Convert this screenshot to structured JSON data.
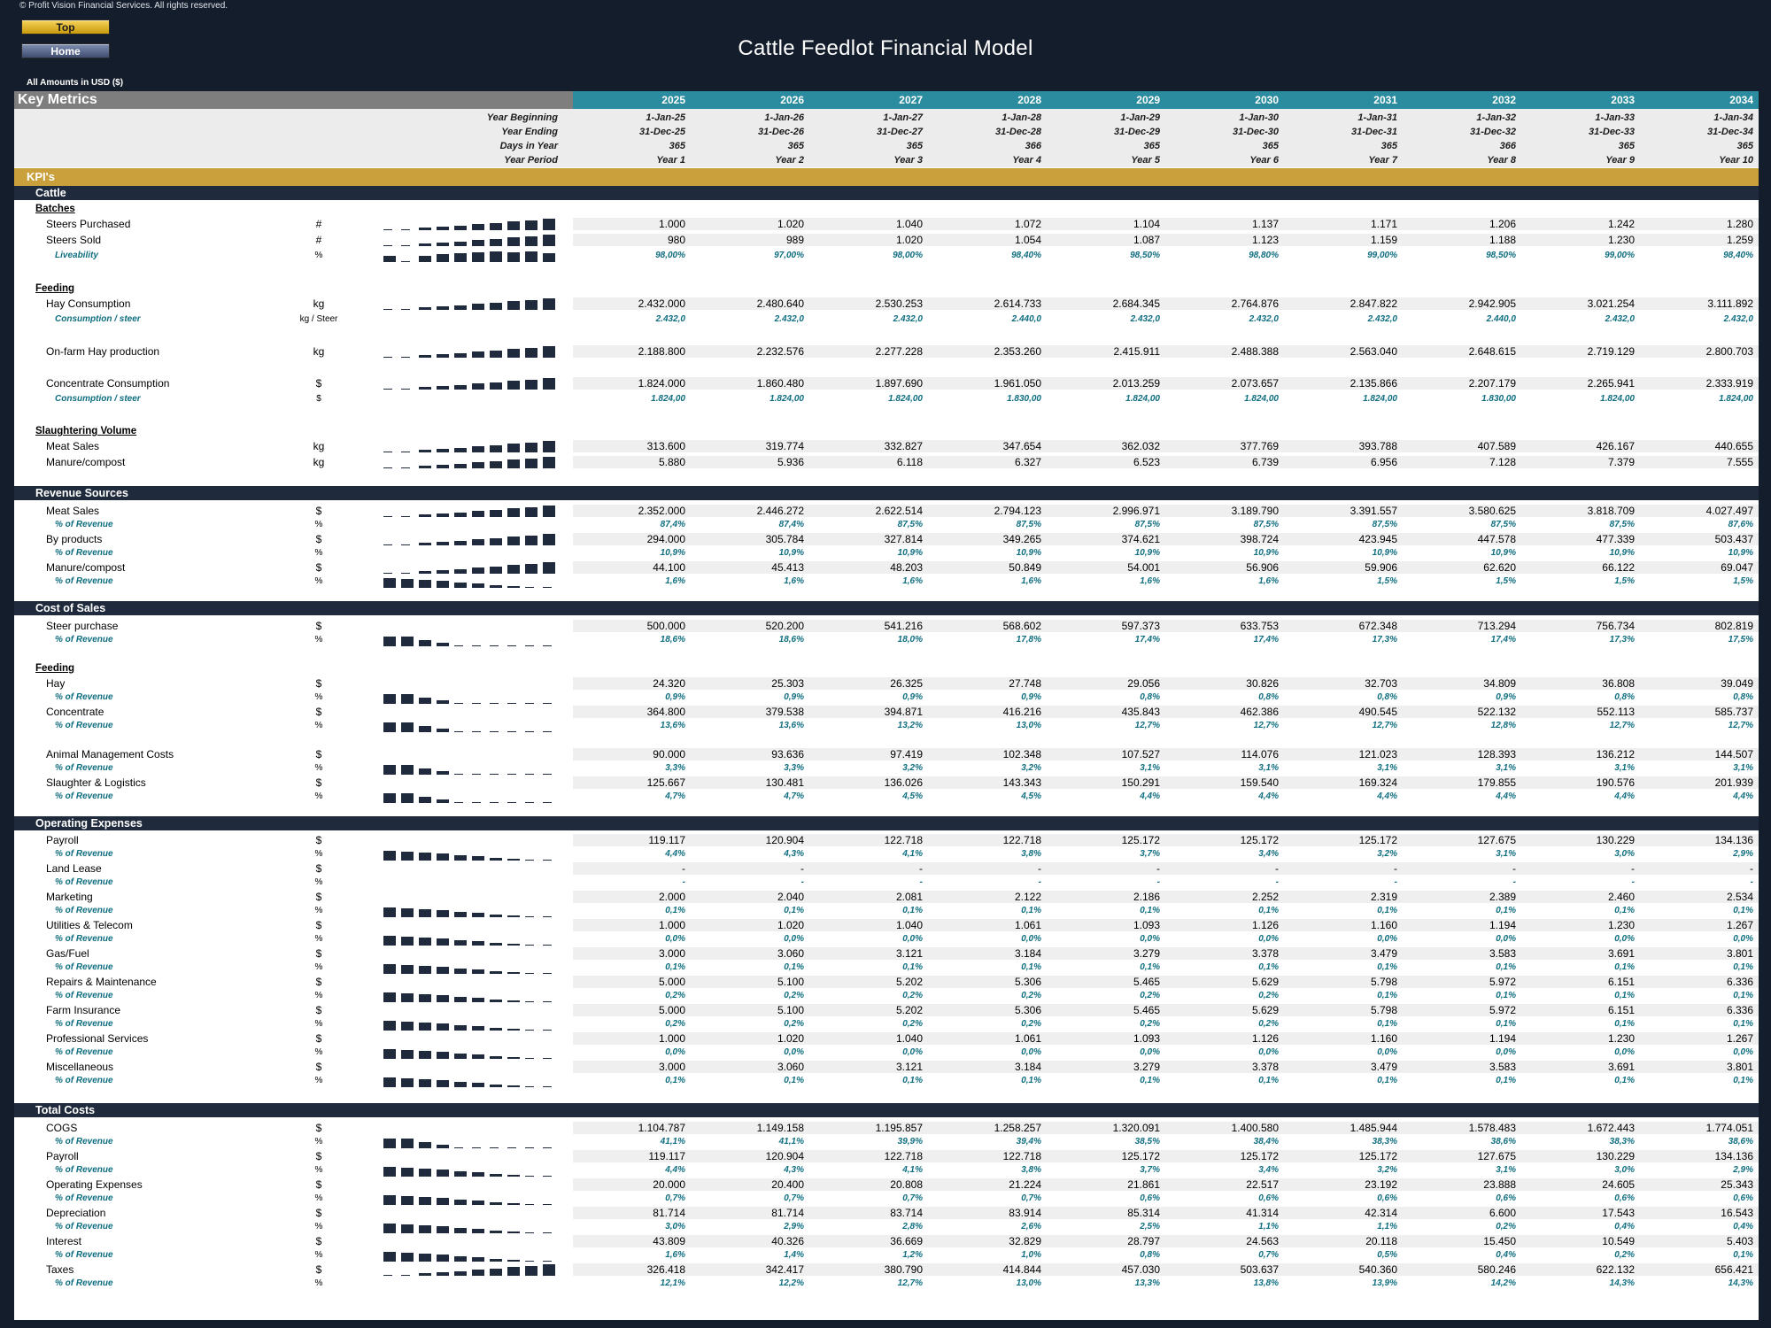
{
  "copyright": "© Profit Vision Financial Services. All rights reserved.",
  "nav": {
    "top": "Top",
    "home": "Home"
  },
  "title": "Cattle Feedlot Financial Model",
  "currency_note": "All Amounts in  USD ($)",
  "header": {
    "key_metrics": "Key Metrics",
    "years": [
      "2025",
      "2026",
      "2027",
      "2028",
      "2029",
      "2030",
      "2031",
      "2032",
      "2033",
      "2034"
    ],
    "meta": [
      {
        "label": "Year Beginning",
        "values": [
          "1-Jan-25",
          "1-Jan-26",
          "1-Jan-27",
          "1-Jan-28",
          "1-Jan-29",
          "1-Jan-30",
          "1-Jan-31",
          "1-Jan-32",
          "1-Jan-33",
          "1-Jan-34"
        ]
      },
      {
        "label": "Year Ending",
        "values": [
          "31-Dec-25",
          "31-Dec-26",
          "31-Dec-27",
          "31-Dec-28",
          "31-Dec-29",
          "31-Dec-30",
          "31-Dec-31",
          "31-Dec-32",
          "31-Dec-33",
          "31-Dec-34"
        ]
      },
      {
        "label": "Days in Year",
        "values": [
          "365",
          "365",
          "365",
          "366",
          "365",
          "365",
          "365",
          "366",
          "365",
          "365"
        ]
      },
      {
        "label": "Year Period",
        "values": [
          "Year 1",
          "Year 2",
          "Year 3",
          "Year 4",
          "Year 5",
          "Year 6",
          "Year 7",
          "Year 8",
          "Year 9",
          "Year 10"
        ]
      }
    ]
  },
  "colors": {
    "teal": "#2b8ca0",
    "gray": "#7e7e7e",
    "gold": "#c9a03c",
    "navy": "#1f2a3c"
  },
  "rows": [
    {
      "t": "gold",
      "y": 89,
      "label": "KPI's"
    },
    {
      "t": "sec",
      "y": 109,
      "label": "Cattle"
    },
    {
      "t": "sub",
      "y": 125,
      "label": "Batches"
    },
    {
      "t": "data",
      "y": 142,
      "label": "Steers Purchased",
      "unit": "#",
      "spark": "up",
      "values": [
        "1.000",
        "1.020",
        "1.040",
        "1.072",
        "1.104",
        "1.137",
        "1.171",
        "1.206",
        "1.242",
        "1.280"
      ]
    },
    {
      "t": "data",
      "y": 160,
      "label": "Steers Sold",
      "unit": "#",
      "spark": "up",
      "values": [
        "980",
        "989",
        "1.020",
        "1.054",
        "1.087",
        "1.123",
        "1.159",
        "1.188",
        "1.230",
        "1.259"
      ]
    },
    {
      "t": "pct",
      "y": 178,
      "label": "Liveability",
      "unit": "%",
      "spark": "full",
      "values": [
        "98,00%",
        "97,00%",
        "98,00%",
        "98,40%",
        "98,50%",
        "98,80%",
        "99,00%",
        "98,50%",
        "99,00%",
        "98,40%"
      ]
    },
    {
      "t": "sub",
      "y": 215,
      "label": "Feeding"
    },
    {
      "t": "data",
      "y": 232,
      "label": "Hay Consumption",
      "unit": "kg",
      "spark": "up",
      "values": [
        "2.432.000",
        "2.480.640",
        "2.530.253",
        "2.614.733",
        "2.684.345",
        "2.764.876",
        "2.847.822",
        "2.942.905",
        "3.021.254",
        "3.111.892"
      ]
    },
    {
      "t": "pct",
      "y": 250,
      "label": "Consumption / steer",
      "unit": "kg / Steer",
      "values": [
        "2.432,0",
        "2.432,0",
        "2.432,0",
        "2.440,0",
        "2.432,0",
        "2.432,0",
        "2.432,0",
        "2.440,0",
        "2.432,0",
        "2.432,0"
      ]
    },
    {
      "t": "data",
      "y": 286,
      "label": "On-farm Hay production",
      "unit": "kg",
      "spark": "up",
      "values": [
        "2.188.800",
        "2.232.576",
        "2.277.228",
        "2.353.260",
        "2.415.911",
        "2.488.388",
        "2.563.040",
        "2.648.615",
        "2.719.129",
        "2.800.703"
      ]
    },
    {
      "t": "data",
      "y": 322,
      "label": "Concentrate Consumption",
      "unit": "$",
      "spark": "up",
      "values": [
        "1.824.000",
        "1.860.480",
        "1.897.690",
        "1.961.050",
        "2.013.259",
        "2.073.657",
        "2.135.866",
        "2.207.179",
        "2.265.941",
        "2.333.919"
      ]
    },
    {
      "t": "pct",
      "y": 340,
      "label": "Consumption / steer",
      "unit": "$",
      "values": [
        "1.824,00",
        "1.824,00",
        "1.824,00",
        "1.830,00",
        "1.824,00",
        "1.824,00",
        "1.824,00",
        "1.830,00",
        "1.824,00",
        "1.824,00"
      ]
    },
    {
      "t": "sub",
      "y": 376,
      "label": "Slaughtering Volume"
    },
    {
      "t": "data",
      "y": 393,
      "label": "Meat Sales",
      "unit": "kg",
      "spark": "up",
      "values": [
        "313.600",
        "319.774",
        "332.827",
        "347.654",
        "362.032",
        "377.769",
        "393.788",
        "407.589",
        "426.167",
        "440.655"
      ]
    },
    {
      "t": "data",
      "y": 411,
      "label": "Manure/compost",
      "unit": "kg",
      "spark": "up",
      "values": [
        "5.880",
        "5.936",
        "6.118",
        "6.327",
        "6.523",
        "6.739",
        "6.956",
        "7.128",
        "7.379",
        "7.555"
      ]
    },
    {
      "t": "sec",
      "y": 448,
      "label": "Revenue Sources"
    },
    {
      "t": "data",
      "y": 466,
      "label": "Meat Sales",
      "unit": "$",
      "spark": "up",
      "values": [
        "2.352.000",
        "2.446.272",
        "2.622.514",
        "2.794.123",
        "2.996.971",
        "3.189.790",
        "3.391.557",
        "3.580.625",
        "3.818.709",
        "4.027.497"
      ]
    },
    {
      "t": "pct",
      "y": 482,
      "label": "% of Revenue",
      "unit": "%",
      "values": [
        "87,4%",
        "87,4%",
        "87,5%",
        "87,5%",
        "87,5%",
        "87,5%",
        "87,5%",
        "87,5%",
        "87,5%",
        "87,6%"
      ]
    },
    {
      "t": "data",
      "y": 498,
      "label": "By products",
      "unit": "$",
      "spark": "up",
      "values": [
        "294.000",
        "305.784",
        "327.814",
        "349.265",
        "374.621",
        "398.724",
        "423.945",
        "447.578",
        "477.339",
        "503.437"
      ]
    },
    {
      "t": "pct",
      "y": 514,
      "label": "% of Revenue",
      "unit": "%",
      "values": [
        "10,9%",
        "10,9%",
        "10,9%",
        "10,9%",
        "10,9%",
        "10,9%",
        "10,9%",
        "10,9%",
        "10,9%",
        "10,9%"
      ]
    },
    {
      "t": "data",
      "y": 530,
      "label": "Manure/compost",
      "unit": "$",
      "spark": "up",
      "values": [
        "44.100",
        "45.413",
        "48.203",
        "50.849",
        "54.001",
        "56.906",
        "59.906",
        "62.620",
        "66.122",
        "69.047"
      ]
    },
    {
      "t": "pct",
      "y": 546,
      "label": "% of Revenue",
      "unit": "%",
      "spark": "down",
      "values": [
        "1,6%",
        "1,6%",
        "1,6%",
        "1,6%",
        "1,6%",
        "1,6%",
        "1,5%",
        "1,5%",
        "1,5%",
        "1,5%"
      ]
    },
    {
      "t": "sec",
      "y": 578,
      "label": "Cost of Sales"
    },
    {
      "t": "data",
      "y": 596,
      "label": "Steer purchase",
      "unit": "$",
      "values": [
        "500.000",
        "520.200",
        "541.216",
        "568.602",
        "597.373",
        "633.753",
        "672.348",
        "713.294",
        "756.734",
        "802.819"
      ]
    },
    {
      "t": "pct",
      "y": 612,
      "label": "% of Revenue",
      "unit": "%",
      "spark": "down2",
      "values": [
        "18,6%",
        "18,6%",
        "18,0%",
        "17,8%",
        "17,4%",
        "17,4%",
        "17,3%",
        "17,4%",
        "17,3%",
        "17,5%"
      ]
    },
    {
      "t": "sub",
      "y": 644,
      "label": "Feeding"
    },
    {
      "t": "data",
      "y": 661,
      "label": "Hay",
      "unit": "$",
      "values": [
        "24.320",
        "25.303",
        "26.325",
        "27.748",
        "29.056",
        "30.826",
        "32.703",
        "34.809",
        "36.808",
        "39.049"
      ]
    },
    {
      "t": "pct",
      "y": 677,
      "label": "% of Revenue",
      "unit": "%",
      "spark": "down2",
      "values": [
        "0,9%",
        "0,9%",
        "0,9%",
        "0,9%",
        "0,8%",
        "0,8%",
        "0,8%",
        "0,9%",
        "0,8%",
        "0,8%"
      ]
    },
    {
      "t": "data",
      "y": 693,
      "label": "Concentrate",
      "unit": "$",
      "values": [
        "364.800",
        "379.538",
        "394.871",
        "416.216",
        "435.843",
        "462.386",
        "490.545",
        "522.132",
        "552.113",
        "585.737"
      ]
    },
    {
      "t": "pct",
      "y": 709,
      "label": "% of Revenue",
      "unit": "%",
      "spark": "down2",
      "values": [
        "13,6%",
        "13,6%",
        "13,2%",
        "13,0%",
        "12,7%",
        "12,7%",
        "12,7%",
        "12,8%",
        "12,7%",
        "12,7%"
      ]
    },
    {
      "t": "data",
      "y": 741,
      "label": "Animal Management Costs",
      "unit": "$",
      "values": [
        "90.000",
        "93.636",
        "97.419",
        "102.348",
        "107.527",
        "114.076",
        "121.023",
        "128.393",
        "136.212",
        "144.507"
      ]
    },
    {
      "t": "pct",
      "y": 757,
      "label": "% of Revenue",
      "unit": "%",
      "spark": "down2",
      "values": [
        "3,3%",
        "3,3%",
        "3,2%",
        "3,2%",
        "3,1%",
        "3,1%",
        "3,1%",
        "3,1%",
        "3,1%",
        "3,1%"
      ]
    },
    {
      "t": "data",
      "y": 773,
      "label": "Slaughter & Logistics",
      "unit": "$",
      "values": [
        "125.667",
        "130.481",
        "136.026",
        "143.343",
        "150.291",
        "159.540",
        "169.324",
        "179.855",
        "190.576",
        "201.939"
      ]
    },
    {
      "t": "pct",
      "y": 789,
      "label": "% of Revenue",
      "unit": "%",
      "spark": "down2",
      "values": [
        "4,7%",
        "4,7%",
        "4,5%",
        "4,5%",
        "4,4%",
        "4,4%",
        "4,4%",
        "4,4%",
        "4,4%",
        "4,4%"
      ]
    },
    {
      "t": "sec",
      "y": 821,
      "label": "Operating Expenses"
    },
    {
      "t": "data",
      "y": 838,
      "label": "Payroll",
      "unit": "$",
      "values": [
        "119.117",
        "120.904",
        "122.718",
        "122.718",
        "125.172",
        "125.172",
        "125.172",
        "127.675",
        "130.229",
        "134.136"
      ]
    },
    {
      "t": "pct",
      "y": 854,
      "label": "% of Revenue",
      "unit": "%",
      "spark": "down",
      "values": [
        "4,4%",
        "4,3%",
        "4,1%",
        "3,8%",
        "3,7%",
        "3,4%",
        "3,2%",
        "3,1%",
        "3,0%",
        "2,9%"
      ]
    },
    {
      "t": "data",
      "y": 870,
      "label": "Land Lease",
      "unit": "$",
      "values": [
        "-",
        "-",
        "-",
        "-",
        "-",
        "-",
        "-",
        "-",
        "-",
        "-"
      ]
    },
    {
      "t": "pct",
      "y": 886,
      "label": "% of Revenue",
      "unit": "%",
      "values": [
        "-",
        "-",
        "-",
        "-",
        "-",
        "-",
        "-",
        "-",
        "-",
        "-"
      ]
    },
    {
      "t": "data",
      "y": 902,
      "label": "Marketing",
      "unit": "$",
      "values": [
        "2.000",
        "2.040",
        "2.081",
        "2.122",
        "2.186",
        "2.252",
        "2.319",
        "2.389",
        "2.460",
        "2.534"
      ]
    },
    {
      "t": "pct",
      "y": 918,
      "label": "% of Revenue",
      "unit": "%",
      "spark": "down",
      "values": [
        "0,1%",
        "0,1%",
        "0,1%",
        "0,1%",
        "0,1%",
        "0,1%",
        "0,1%",
        "0,1%",
        "0,1%",
        "0,1%"
      ]
    },
    {
      "t": "data",
      "y": 934,
      "label": "Utilities & Telecom",
      "unit": "$",
      "values": [
        "1.000",
        "1.020",
        "1.040",
        "1.061",
        "1.093",
        "1.126",
        "1.160",
        "1.194",
        "1.230",
        "1.267"
      ]
    },
    {
      "t": "pct",
      "y": 950,
      "label": "% of Revenue",
      "unit": "%",
      "spark": "down",
      "values": [
        "0,0%",
        "0,0%",
        "0,0%",
        "0,0%",
        "0,0%",
        "0,0%",
        "0,0%",
        "0,0%",
        "0,0%",
        "0,0%"
      ]
    },
    {
      "t": "data",
      "y": 966,
      "label": "Gas/Fuel",
      "unit": "$",
      "values": [
        "3.000",
        "3.060",
        "3.121",
        "3.184",
        "3.279",
        "3.378",
        "3.479",
        "3.583",
        "3.691",
        "3.801"
      ]
    },
    {
      "t": "pct",
      "y": 982,
      "label": "% of Revenue",
      "unit": "%",
      "spark": "down",
      "values": [
        "0,1%",
        "0,1%",
        "0,1%",
        "0,1%",
        "0,1%",
        "0,1%",
        "0,1%",
        "0,1%",
        "0,1%",
        "0,1%"
      ]
    },
    {
      "t": "data",
      "y": 998,
      "label": "Repairs & Maintenance",
      "unit": "$",
      "values": [
        "5.000",
        "5.100",
        "5.202",
        "5.306",
        "5.465",
        "5.629",
        "5.798",
        "5.972",
        "6.151",
        "6.336"
      ]
    },
    {
      "t": "pct",
      "y": 1014,
      "label": "% of Revenue",
      "unit": "%",
      "spark": "down",
      "values": [
        "0,2%",
        "0,2%",
        "0,2%",
        "0,2%",
        "0,2%",
        "0,2%",
        "0,1%",
        "0,1%",
        "0,1%",
        "0,1%"
      ]
    },
    {
      "t": "data",
      "y": 1030,
      "label": "Farm Insurance",
      "unit": "$",
      "values": [
        "5.000",
        "5.100",
        "5.202",
        "5.306",
        "5.465",
        "5.629",
        "5.798",
        "5.972",
        "6.151",
        "6.336"
      ]
    },
    {
      "t": "pct",
      "y": 1046,
      "label": "% of Revenue",
      "unit": "%",
      "spark": "down",
      "values": [
        "0,2%",
        "0,2%",
        "0,2%",
        "0,2%",
        "0,2%",
        "0,2%",
        "0,1%",
        "0,1%",
        "0,1%",
        "0,1%"
      ]
    },
    {
      "t": "data",
      "y": 1062,
      "label": "Professional Services",
      "unit": "$",
      "values": [
        "1.000",
        "1.020",
        "1.040",
        "1.061",
        "1.093",
        "1.126",
        "1.160",
        "1.194",
        "1.230",
        "1.267"
      ]
    },
    {
      "t": "pct",
      "y": 1078,
      "label": "% of Revenue",
      "unit": "%",
      "spark": "down",
      "values": [
        "0,0%",
        "0,0%",
        "0,0%",
        "0,0%",
        "0,0%",
        "0,0%",
        "0,0%",
        "0,0%",
        "0,0%",
        "0,0%"
      ]
    },
    {
      "t": "data",
      "y": 1094,
      "label": "Miscellaneous",
      "unit": "$",
      "values": [
        "3.000",
        "3.060",
        "3.121",
        "3.184",
        "3.279",
        "3.378",
        "3.479",
        "3.583",
        "3.691",
        "3.801"
      ]
    },
    {
      "t": "pct",
      "y": 1110,
      "label": "% of Revenue",
      "unit": "%",
      "spark": "down",
      "values": [
        "0,1%",
        "0,1%",
        "0,1%",
        "0,1%",
        "0,1%",
        "0,1%",
        "0,1%",
        "0,1%",
        "0,1%",
        "0,1%"
      ]
    },
    {
      "t": "sec",
      "y": 1145,
      "label": "Total Costs"
    },
    {
      "t": "data",
      "y": 1163,
      "label": "COGS",
      "unit": "$",
      "values": [
        "1.104.787",
        "1.149.158",
        "1.195.857",
        "1.258.257",
        "1.320.091",
        "1.400.580",
        "1.485.944",
        "1.578.483",
        "1.672.443",
        "1.774.051"
      ]
    },
    {
      "t": "pct",
      "y": 1179,
      "label": "% of Revenue",
      "unit": "%",
      "spark": "down2",
      "values": [
        "41,1%",
        "41,1%",
        "39,9%",
        "39,4%",
        "38,5%",
        "38,4%",
        "38,3%",
        "38,6%",
        "38,3%",
        "38,6%"
      ]
    },
    {
      "t": "data",
      "y": 1195,
      "label": "Payroll",
      "unit": "$",
      "values": [
        "119.117",
        "120.904",
        "122.718",
        "122.718",
        "125.172",
        "125.172",
        "125.172",
        "127.675",
        "130.229",
        "134.136"
      ]
    },
    {
      "t": "pct",
      "y": 1211,
      "label": "% of Revenue",
      "unit": "%",
      "spark": "down",
      "values": [
        "4,4%",
        "4,3%",
        "4,1%",
        "3,8%",
        "3,7%",
        "3,4%",
        "3,2%",
        "3,1%",
        "3,0%",
        "2,9%"
      ]
    },
    {
      "t": "data",
      "y": 1227,
      "label": "Operating Expenses",
      "unit": "$",
      "values": [
        "20.000",
        "20.400",
        "20.808",
        "21.224",
        "21.861",
        "22.517",
        "23.192",
        "23.888",
        "24.605",
        "25.343"
      ]
    },
    {
      "t": "pct",
      "y": 1243,
      "label": "% of Revenue",
      "unit": "%",
      "spark": "down",
      "values": [
        "0,7%",
        "0,7%",
        "0,7%",
        "0,7%",
        "0,6%",
        "0,6%",
        "0,6%",
        "0,6%",
        "0,6%",
        "0,6%"
      ]
    },
    {
      "t": "data",
      "y": 1259,
      "label": "Depreciation",
      "unit": "$",
      "values": [
        "81.714",
        "81.714",
        "83.714",
        "83.914",
        "85.314",
        "41.314",
        "42.314",
        "6.600",
        "17.543",
        "16.543"
      ]
    },
    {
      "t": "pct",
      "y": 1275,
      "label": "% of Revenue",
      "unit": "%",
      "spark": "down",
      "values": [
        "3,0%",
        "2,9%",
        "2,8%",
        "2,6%",
        "2,5%",
        "1,1%",
        "1,1%",
        "0,2%",
        "0,4%",
        "0,4%"
      ]
    },
    {
      "t": "data",
      "y": 1291,
      "label": "Interest",
      "unit": "$",
      "values": [
        "43.809",
        "40.326",
        "36.669",
        "32.829",
        "28.797",
        "24.563",
        "20.118",
        "15.450",
        "10.549",
        "5.403"
      ]
    },
    {
      "t": "pct",
      "y": 1307,
      "label": "% of Revenue",
      "unit": "%",
      "spark": "down",
      "values": [
        "1,6%",
        "1,4%",
        "1,2%",
        "1,0%",
        "0,8%",
        "0,7%",
        "0,5%",
        "0,4%",
        "0,2%",
        "0,1%"
      ]
    },
    {
      "t": "data",
      "y": 1323,
      "label": "Taxes",
      "unit": "$",
      "spark": "up",
      "values": [
        "326.418",
        "342.417",
        "380.790",
        "414.844",
        "457.030",
        "503.637",
        "540.360",
        "580.246",
        "622.132",
        "656.421"
      ]
    },
    {
      "t": "pct",
      "y": 1339,
      "label": "% of Revenue",
      "unit": "%",
      "values": [
        "12,1%",
        "12,2%",
        "12,7%",
        "13,0%",
        "13,3%",
        "13,8%",
        "13,9%",
        "14,2%",
        "14,3%",
        "14,3%"
      ]
    }
  ]
}
